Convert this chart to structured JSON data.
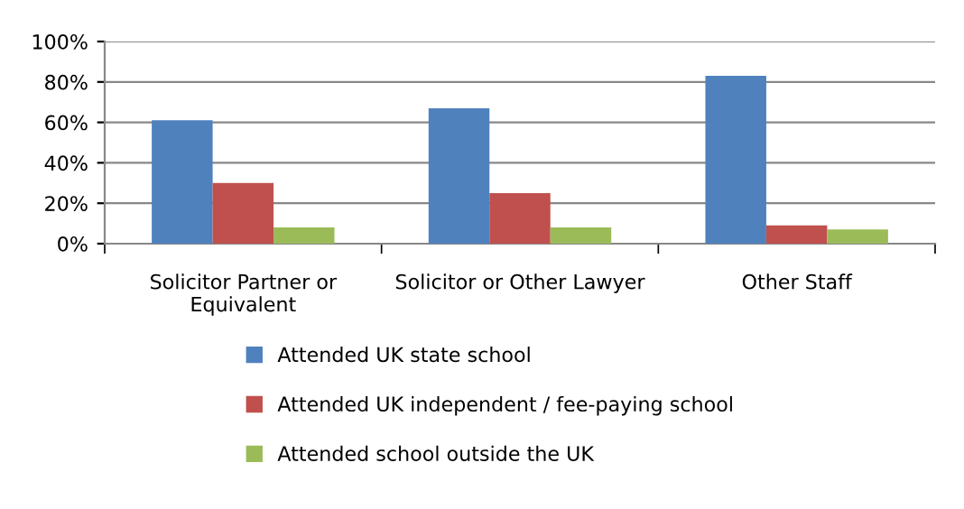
{
  "chart_data": {
    "type": "bar",
    "categories": [
      "Solicitor Partner or\nEquivalent",
      "Solicitor or Other Lawyer",
      "Other Staff"
    ],
    "series": [
      {
        "name": "Attended UK state school",
        "color": "#4f81bd",
        "values": [
          61,
          67,
          83
        ]
      },
      {
        "name": "Attended UK independent / fee-paying school",
        "color": "#c0504d",
        "values": [
          30,
          25,
          9
        ]
      },
      {
        "name": "Attended school outside the UK",
        "color": "#9bbb59",
        "values": [
          8,
          8,
          7
        ]
      }
    ],
    "ylim": [
      0,
      100
    ],
    "yticks": [
      {
        "value": 0,
        "label": "0%"
      },
      {
        "value": 20,
        "label": "20%"
      },
      {
        "value": 40,
        "label": "40%"
      },
      {
        "value": 60,
        "label": "60%"
      },
      {
        "value": 80,
        "label": "80%"
      },
      {
        "value": 100,
        "label": "100%"
      }
    ],
    "grid": "y",
    "legend": "bottom"
  }
}
